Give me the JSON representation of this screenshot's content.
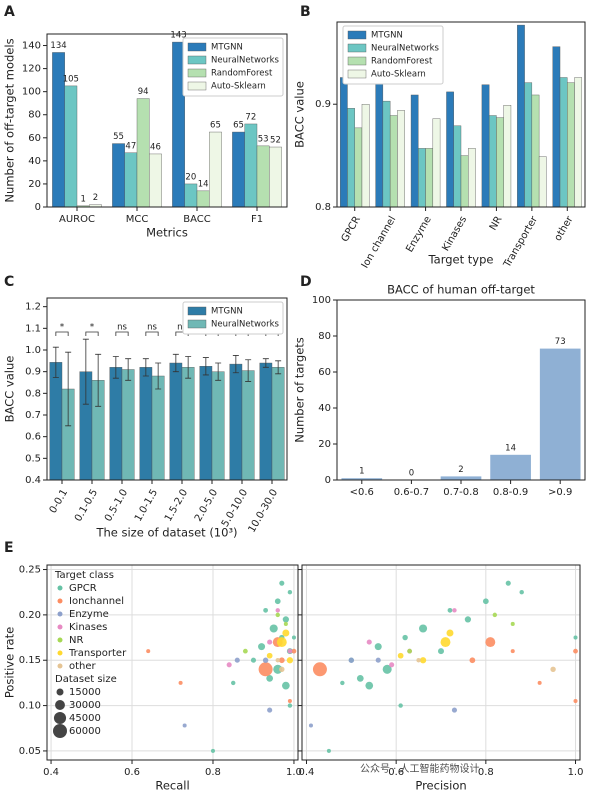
{
  "chart_data": [
    {
      "type": "bar",
      "panel_label": "A",
      "ylabel": "Number of off-target models",
      "xlabel": "Metrics",
      "categories": [
        "AUROC",
        "MCC",
        "BACC",
        "F1"
      ],
      "series": [
        {
          "name": "MTGNN",
          "color": "#2b7bb9",
          "values": [
            134,
            55,
            143,
            65
          ]
        },
        {
          "name": "NeuralNetworks",
          "color": "#6cc6c3",
          "values": [
            105,
            47,
            20,
            72
          ]
        },
        {
          "name": "RandomForest",
          "color": "#b5e0b0",
          "values": [
            1,
            94,
            14,
            53
          ]
        },
        {
          "name": "Auto-Sklearn",
          "color": "#eef7e6",
          "values": [
            2,
            46,
            65,
            52
          ]
        }
      ],
      "ylim": [
        0,
        150
      ],
      "yticks": [
        0,
        20,
        40,
        60,
        80,
        100,
        120,
        140
      ],
      "legend": "upper right",
      "data_labels": true
    },
    {
      "type": "bar",
      "panel_label": "B",
      "ylabel": "BACC value",
      "xlabel": "Target type",
      "categories": [
        "GPCR",
        "Ion channel",
        "Enzyme",
        "Kinases",
        "NR",
        "Transporter",
        "other"
      ],
      "series": [
        {
          "name": "MTGNN",
          "color": "#2b7bb9",
          "values": [
            0.926,
            0.929,
            0.909,
            0.912,
            0.919,
            0.977,
            0.956
          ]
        },
        {
          "name": "NeuralNetworks",
          "color": "#6cc6c3",
          "values": [
            0.896,
            0.903,
            0.857,
            0.879,
            0.889,
            0.921,
            0.926
          ]
        },
        {
          "name": "RandomForest",
          "color": "#b5e0b0",
          "values": [
            0.877,
            0.889,
            0.857,
            0.85,
            0.887,
            0.909,
            0.921
          ]
        },
        {
          "name": "Auto-Sklearn",
          "color": "#eef7e6",
          "values": [
            0.9,
            0.894,
            0.886,
            0.857,
            0.899,
            0.849,
            0.926
          ]
        }
      ],
      "ylim": [
        0.8,
        0.98
      ],
      "yticks": [
        0.8,
        0.9
      ],
      "legend": "upper left"
    },
    {
      "type": "bar",
      "panel_label": "C",
      "ylabel": "BACC value",
      "xlabel": "The size of dataset (10³)",
      "categories": [
        "0-0.1",
        "0.1-0.5",
        "0.5-1.0",
        "1.0-1.5",
        "1.5-2.0",
        "2.0-5.0",
        "5.0-10.0",
        "10.0-30.0"
      ],
      "series": [
        {
          "name": "MTGNN",
          "color": "#2e7ca6",
          "values": [
            0.943,
            0.9,
            0.92,
            0.92,
            0.94,
            0.925,
            0.935,
            0.94
          ],
          "errors": [
            0.07,
            0.15,
            0.05,
            0.04,
            0.04,
            0.04,
            0.04,
            0.02
          ]
        },
        {
          "name": "NeuralNetworks",
          "color": "#70b8b5",
          "values": [
            0.82,
            0.86,
            0.91,
            0.88,
            0.92,
            0.9,
            0.905,
            0.92
          ],
          "errors": [
            0.17,
            0.12,
            0.05,
            0.06,
            0.05,
            0.04,
            0.05,
            0.03
          ]
        }
      ],
      "annotations": [
        "*",
        "*",
        "ns",
        "ns",
        "ns",
        "*",
        "*",
        "**"
      ],
      "ylim": [
        0.4,
        1.24
      ],
      "yticks": [
        0.4,
        0.5,
        0.6,
        0.7,
        0.8,
        0.9,
        {
          "value": 1,
          "label": "1.0"
        },
        1.1,
        1.2
      ],
      "legend": "upper right"
    },
    {
      "type": "bar",
      "panel_label": "D",
      "title": "BACC of human off-target",
      "ylabel": "Number of targets",
      "categories": [
        "<0.6",
        "0.6-0.7",
        "0.7-0.8",
        "0.8-0.9",
        ">0.9"
      ],
      "values": [
        1,
        0,
        2,
        14,
        73
      ],
      "color": "#8fb0d4",
      "ylim": [
        0,
        100
      ],
      "yticks": [
        0,
        20,
        40,
        60,
        80,
        100
      ],
      "data_labels": true
    },
    {
      "type": "scatter",
      "panel_label": "E",
      "ylabel": "Positive rate",
      "xlabels": [
        "Recall",
        "Precision"
      ],
      "legend_title": "Target class",
      "size_legend_title": "Dataset size",
      "size_legend": [
        15000,
        30000,
        45000,
        60000
      ],
      "xlim": [
        0.39,
        1.01
      ],
      "xticks": [
        0.4,
        0.6,
        0.8,
        {
          "value": 1,
          "label": "1.0"
        }
      ],
      "ylim": [
        0.04,
        0.255
      ],
      "yticks": [
        0.05,
        {
          "value": 0.1,
          "label": "0.10"
        },
        0.15,
        {
          "value": 0.2,
          "label": "0.20"
        },
        0.25
      ],
      "grid": true,
      "watermark": "公众号 · 人工智能药物设计",
      "series": [
        {
          "name": "GPCR",
          "color": "#66c2a5",
          "recall": [
            0.97,
            0.99,
            0.96,
            0.93,
            0.98,
            0.95,
            0.97,
            0.92,
            0.99,
            0.9,
            0.96,
            0.94,
            0.85,
            0.98,
            0.8,
            1.0,
            0.99
          ],
          "precision": [
            0.85,
            0.88,
            0.8,
            0.72,
            0.76,
            0.66,
            0.62,
            0.56,
            0.7,
            0.5,
            0.58,
            0.52,
            0.48,
            0.54,
            0.45,
            1.0,
            0.61
          ],
          "values": [
            0.235,
            0.225,
            0.215,
            0.205,
            0.195,
            0.185,
            0.175,
            0.165,
            0.16,
            0.15,
            0.14,
            0.13,
            0.125,
            0.122,
            0.05,
            0.175,
            0.1
          ],
          "sizes": [
            8000,
            6000,
            10000,
            7000,
            12000,
            20000,
            9000,
            15000,
            11000,
            8000,
            25000,
            14000,
            6000,
            18000,
            5000,
            5000,
            6000
          ]
        },
        {
          "name": "Ionchannel",
          "color": "#fc8d62",
          "recall": [
            0.93,
            0.64,
            0.72,
            0.97,
            1.0,
            0.99,
            0.96
          ],
          "precision": [
            0.43,
            0.86,
            0.92,
            0.77,
            1.0,
            1.0,
            0.81
          ],
          "values": [
            0.14,
            0.16,
            0.125,
            0.15,
            0.16,
            0.105,
            0.17
          ],
          "sizes": [
            60000,
            5000,
            5000,
            10000,
            7000,
            5000,
            30000
          ]
        },
        {
          "name": "Enzyme",
          "color": "#8da0cb",
          "recall": [
            0.73,
            0.94,
            0.93,
            0.86
          ],
          "precision": [
            0.41,
            0.73,
            0.5,
            0.56
          ],
          "values": [
            0.078,
            0.095,
            0.15,
            0.15
          ],
          "sizes": [
            5000,
            8000,
            9000,
            8000
          ]
        },
        {
          "name": "Kinases",
          "color": "#e78ac3",
          "recall": [
            0.84,
            0.99,
            0.94,
            0.96
          ],
          "precision": [
            0.59,
            0.63,
            0.54,
            0.73
          ],
          "values": [
            0.145,
            0.16,
            0.17,
            0.205
          ],
          "sizes": [
            8000,
            7000,
            8000,
            6000
          ]
        },
        {
          "name": "NR",
          "color": "#a6d854",
          "recall": [
            0.96,
            0.98,
            0.88
          ],
          "precision": [
            0.82,
            0.86,
            0.63
          ],
          "values": [
            0.2,
            0.19,
            0.16
          ],
          "sizes": [
            6000,
            5000,
            7000
          ]
        },
        {
          "name": "Transporter",
          "color": "#ffd92f",
          "recall": [
            0.97,
            0.98,
            0.94,
            0.99
          ],
          "precision": [
            0.71,
            0.72,
            0.61,
            0.66
          ],
          "values": [
            0.17,
            0.18,
            0.155,
            0.15
          ],
          "sizes": [
            30000,
            15000,
            10000,
            12000
          ]
        },
        {
          "name": "other",
          "color": "#e5c494",
          "recall": [
            0.97,
            0.96
          ],
          "precision": [
            0.95,
            0.65
          ],
          "values": [
            0.14,
            0.15
          ],
          "sizes": [
            9000,
            6000
          ]
        }
      ]
    }
  ]
}
